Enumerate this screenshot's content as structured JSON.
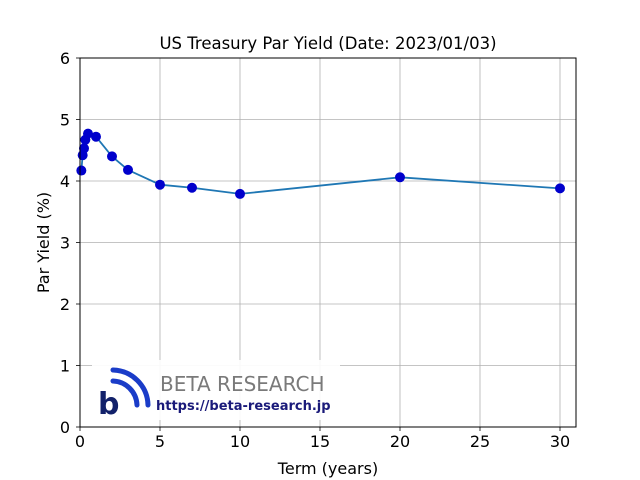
{
  "chart_data": {
    "type": "line",
    "title": "US Treasury Par Yield (Date: 2023/01/03)",
    "xlabel": "Term (years)",
    "ylabel": "Par Yield (%)",
    "xlim": [
      0,
      31
    ],
    "ylim": [
      0,
      6
    ],
    "xticks": [
      0,
      5,
      10,
      15,
      20,
      25,
      30
    ],
    "yticks": [
      0,
      1,
      2,
      3,
      4,
      5,
      6
    ],
    "grid": true,
    "series": [
      {
        "color": "#1f77b4",
        "marker_color": "#0000cc",
        "points": [
          {
            "x": 0.0833,
            "y": 4.17
          },
          {
            "x": 0.1667,
            "y": 4.42
          },
          {
            "x": 0.25,
            "y": 4.53
          },
          {
            "x": 0.3333,
            "y": 4.67
          },
          {
            "x": 0.5,
            "y": 4.77
          },
          {
            "x": 1,
            "y": 4.72
          },
          {
            "x": 2,
            "y": 4.4
          },
          {
            "x": 3,
            "y": 4.18
          },
          {
            "x": 5,
            "y": 3.94
          },
          {
            "x": 7,
            "y": 3.89
          },
          {
            "x": 10,
            "y": 3.79
          },
          {
            "x": 20,
            "y": 4.06
          },
          {
            "x": 30,
            "y": 3.88
          }
        ]
      }
    ]
  },
  "watermark": {
    "brand": "BETA RESEARCH",
    "url": "https://beta-research.jp",
    "logo_letter": "b"
  }
}
